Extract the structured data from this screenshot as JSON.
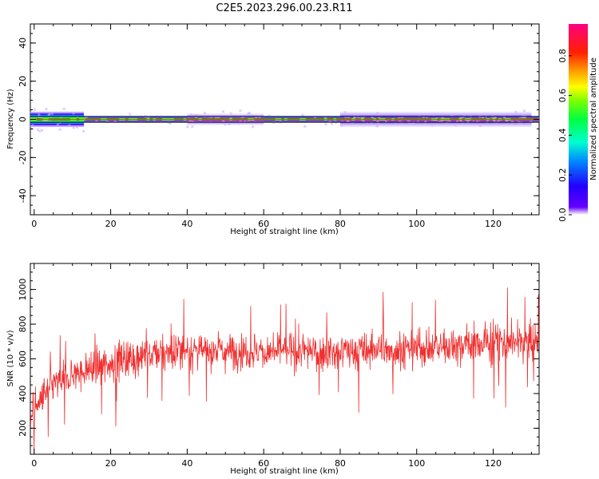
{
  "title": "C2E5.2023.296.00.23.R11",
  "chart_data": [
    {
      "type": "heatmap",
      "title": "C2E5.2023.296.00.23.R11",
      "xlabel": "Height of straight line (km)",
      "ylabel": "Frequency (Hz)",
      "xlim": [
        -1,
        132
      ],
      "ylim": [
        -50,
        50
      ],
      "x_ticks": [
        "0",
        "20",
        "40",
        "60",
        "80",
        "100",
        "120"
      ],
      "y_ticks": [
        "40",
        "20",
        "0",
        "-20",
        "-40"
      ],
      "colorbar": {
        "label": "Normalized spectral amplitude",
        "range": [
          0,
          0.96
        ],
        "ticks": [
          "0.0",
          "0.2",
          "0.4",
          "0.6",
          "0.8"
        ],
        "colormap": "gist_rainbow_r"
      },
      "reference_lines": [
        {
          "y": 1.5,
          "color": "#000000"
        },
        {
          "y": -1.5,
          "color": "#000000"
        },
        {
          "y": 0,
          "color": "#00c000"
        }
      ],
      "bands": [
        {
          "x_start": -1,
          "x_end": 13,
          "half_width_hz": 4,
          "peak": 0.9
        },
        {
          "x_start": 13,
          "x_end": 132,
          "half_width_hz": 1.5,
          "peak": 0.95
        },
        {
          "x_start": 40,
          "x_end": 60,
          "half_width_hz": 3,
          "peak": 0.3
        },
        {
          "x_start": 80,
          "x_end": 130,
          "half_width_hz": 4,
          "peak": 0.4
        }
      ]
    },
    {
      "type": "line",
      "xlabel": "Height of straight line (km)",
      "ylabel": "SNR (10 * v/v)",
      "xlim": [
        -1,
        132
      ],
      "ylim": [
        50,
        1150
      ],
      "x_ticks": [
        "0",
        "20",
        "40",
        "60",
        "80",
        "100",
        "120"
      ],
      "y_ticks": [
        "200",
        "400",
        "600",
        "800",
        "1000"
      ],
      "color": "#f03030",
      "trend": [
        {
          "x": -1,
          "mean": 280,
          "spread": 160
        },
        {
          "x": 5,
          "mean": 450,
          "spread": 140
        },
        {
          "x": 12,
          "mean": 520,
          "spread": 150
        },
        {
          "x": 20,
          "mean": 580,
          "spread": 160
        },
        {
          "x": 30,
          "mean": 620,
          "spread": 160
        },
        {
          "x": 40,
          "mean": 650,
          "spread": 160
        },
        {
          "x": 60,
          "mean": 640,
          "spread": 160
        },
        {
          "x": 80,
          "mean": 640,
          "spread": 160
        },
        {
          "x": 100,
          "mean": 660,
          "spread": 170
        },
        {
          "x": 120,
          "mean": 690,
          "spread": 180
        },
        {
          "x": 132,
          "mean": 700,
          "spread": 180
        }
      ],
      "samples": 1400
    }
  ]
}
